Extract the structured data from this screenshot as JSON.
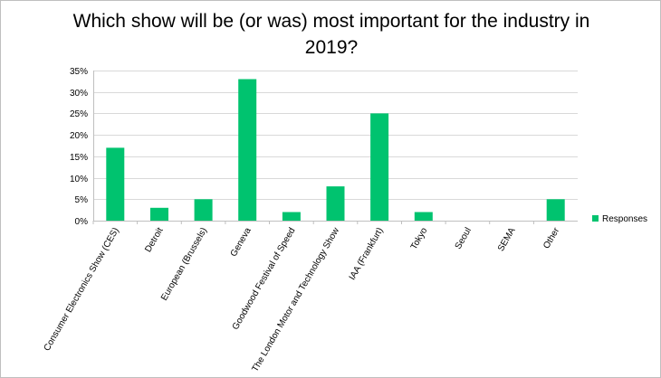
{
  "chart_data": {
    "type": "bar",
    "title": "Which show will be (or was) most important for the industry in 2019?",
    "xlabel": "",
    "ylabel": "",
    "categories": [
      "Consumer Electronics Show (CES)",
      "Detroit",
      "European (Brussels)",
      "Geneva",
      "Goodwood Festival of Speed",
      "The London Motor and Technology Show",
      "IAA (Frankfurt)",
      "Tokyo",
      "Seoul",
      "SEMA",
      "Other"
    ],
    "series": [
      {
        "name": "Responses",
        "values": [
          17,
          3,
          5,
          33,
          2,
          8,
          25,
          2,
          0,
          0,
          5
        ],
        "color": "#00c36f"
      }
    ],
    "ylim": [
      0,
      35
    ],
    "yticks": [
      0,
      5,
      10,
      15,
      20,
      25,
      30,
      35
    ],
    "ytick_labels": [
      "0%",
      "5%",
      "10%",
      "15%",
      "20%",
      "25%",
      "30%",
      "35%"
    ],
    "grid": true,
    "legend_position": "right"
  }
}
